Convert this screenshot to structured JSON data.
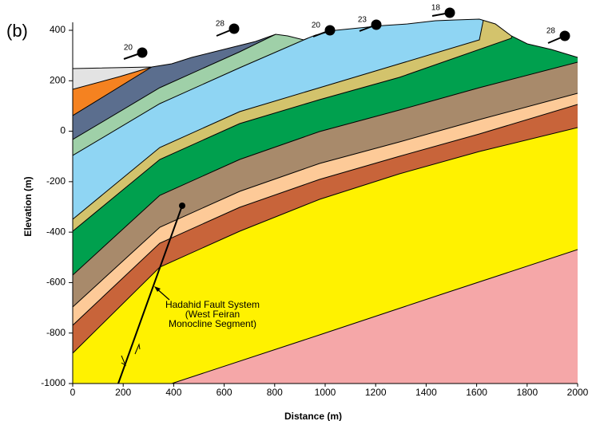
{
  "chart_data": {
    "type": "cross-section",
    "panel_label": "(b)",
    "x_label": "Distance (m)",
    "y_label": "Elevation (m)",
    "xlim": [
      0,
      2000
    ],
    "ylim": [
      -1000,
      400
    ],
    "xticks": [
      0,
      200,
      400,
      600,
      800,
      1000,
      1200,
      1400,
      1600,
      1800,
      2000
    ],
    "yticks": [
      -1000,
      -800,
      -600,
      -400,
      -200,
      0,
      200,
      400
    ],
    "dip_labels": [
      20,
      28,
      20,
      23,
      18,
      28
    ],
    "fault_label": [
      "Hadahid Fault System",
      "(West Feiran",
      "Monocline Segment)"
    ]
  }
}
